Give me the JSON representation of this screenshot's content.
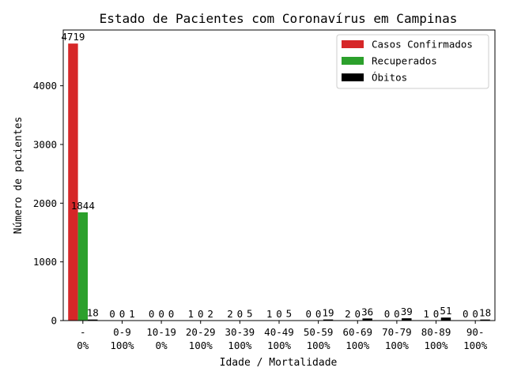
{
  "chart_data": {
    "type": "bar",
    "title": "Estado de Pacientes com Coronavírus em Campinas",
    "xlabel": "Idade / Mortalidade",
    "ylabel": "Número de pacientes",
    "ylim": [
      0,
      4950
    ],
    "yticks": [
      0,
      1000,
      2000,
      3000,
      4000
    ],
    "categories": [
      "-",
      "0-9",
      "10-19",
      "20-29",
      "30-39",
      "40-49",
      "50-59",
      "60-69",
      "70-79",
      "80-89",
      "90-"
    ],
    "mortality": [
      "0%",
      "100%",
      "0%",
      "100%",
      "100%",
      "100%",
      "100%",
      "100%",
      "100%",
      "100%",
      "100%"
    ],
    "series": [
      {
        "name": "Casos Confirmados",
        "color": "#d62728",
        "values": [
          4719,
          0,
          0,
          1,
          2,
          1,
          0,
          2,
          0,
          1,
          0
        ]
      },
      {
        "name": "Recuperados",
        "color": "#2ca02c",
        "values": [
          1844,
          0,
          0,
          0,
          0,
          0,
          0,
          0,
          0,
          0,
          0
        ]
      },
      {
        "name": "Óbitos",
        "color": "#000000",
        "values": [
          18,
          1,
          0,
          2,
          5,
          5,
          19,
          36,
          39,
          51,
          18
        ]
      }
    ],
    "legend_position": "top-right",
    "grid": false
  }
}
